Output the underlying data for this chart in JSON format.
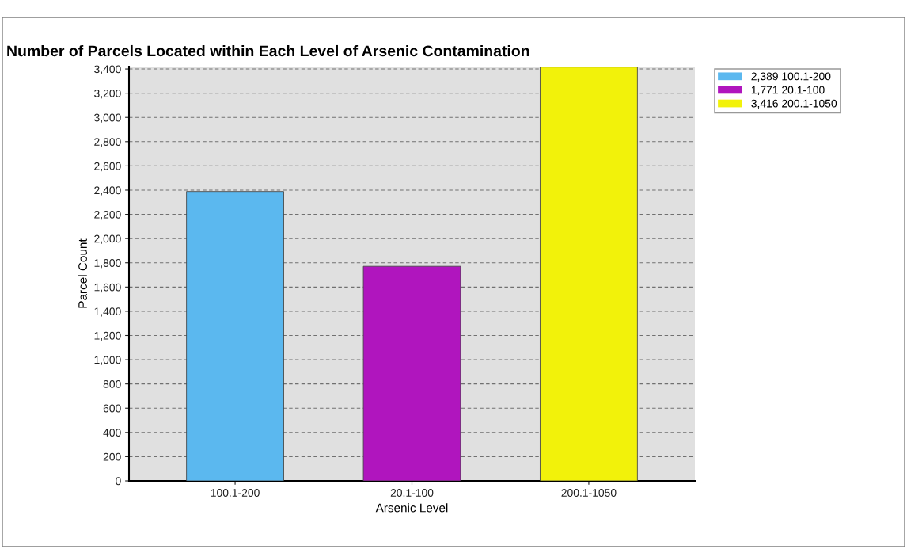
{
  "chart_data": {
    "type": "bar",
    "title": "Number of Parcels Located within Each Level of Arsenic Contamination",
    "xlabel": "Arsenic Level",
    "ylabel": "Parcel Count",
    "categories": [
      "100.1-200",
      "20.1-100",
      "200.1-1050"
    ],
    "series": [
      {
        "name": "2,389 100.1-200",
        "color": "#5bb8ef",
        "values": [
          2389,
          null,
          null
        ]
      },
      {
        "name": "1,771 20.1-100",
        "color": "#b015be",
        "values": [
          null,
          1771,
          null
        ]
      },
      {
        "name": "3,416 200.1-1050",
        "color": "#f2f20a",
        "values": [
          null,
          null,
          3416
        ]
      }
    ],
    "ylim": [
      0,
      3420
    ],
    "yticks": [
      {
        "value": 0,
        "label": "0"
      },
      {
        "value": 200,
        "label": "200"
      },
      {
        "value": 400,
        "label": "400"
      },
      {
        "value": 600,
        "label": "600"
      },
      {
        "value": 800,
        "label": "800"
      },
      {
        "value": 1000,
        "label": "1,000"
      },
      {
        "value": 1200,
        "label": "1,200"
      },
      {
        "value": 1400,
        "label": "1,400"
      },
      {
        "value": 1600,
        "label": "1,600"
      },
      {
        "value": 1800,
        "label": "1,800"
      },
      {
        "value": 2000,
        "label": "2,000"
      },
      {
        "value": 2200,
        "label": "2,200"
      },
      {
        "value": 2400,
        "label": "2,400"
      },
      {
        "value": 2600,
        "label": "2,600"
      },
      {
        "value": 2800,
        "label": "2,800"
      },
      {
        "value": 3000,
        "label": "3,000"
      },
      {
        "value": 3200,
        "label": "3,200"
      },
      {
        "value": 3400,
        "label": "3,400"
      }
    ],
    "grid": "y",
    "legend": "top right"
  }
}
